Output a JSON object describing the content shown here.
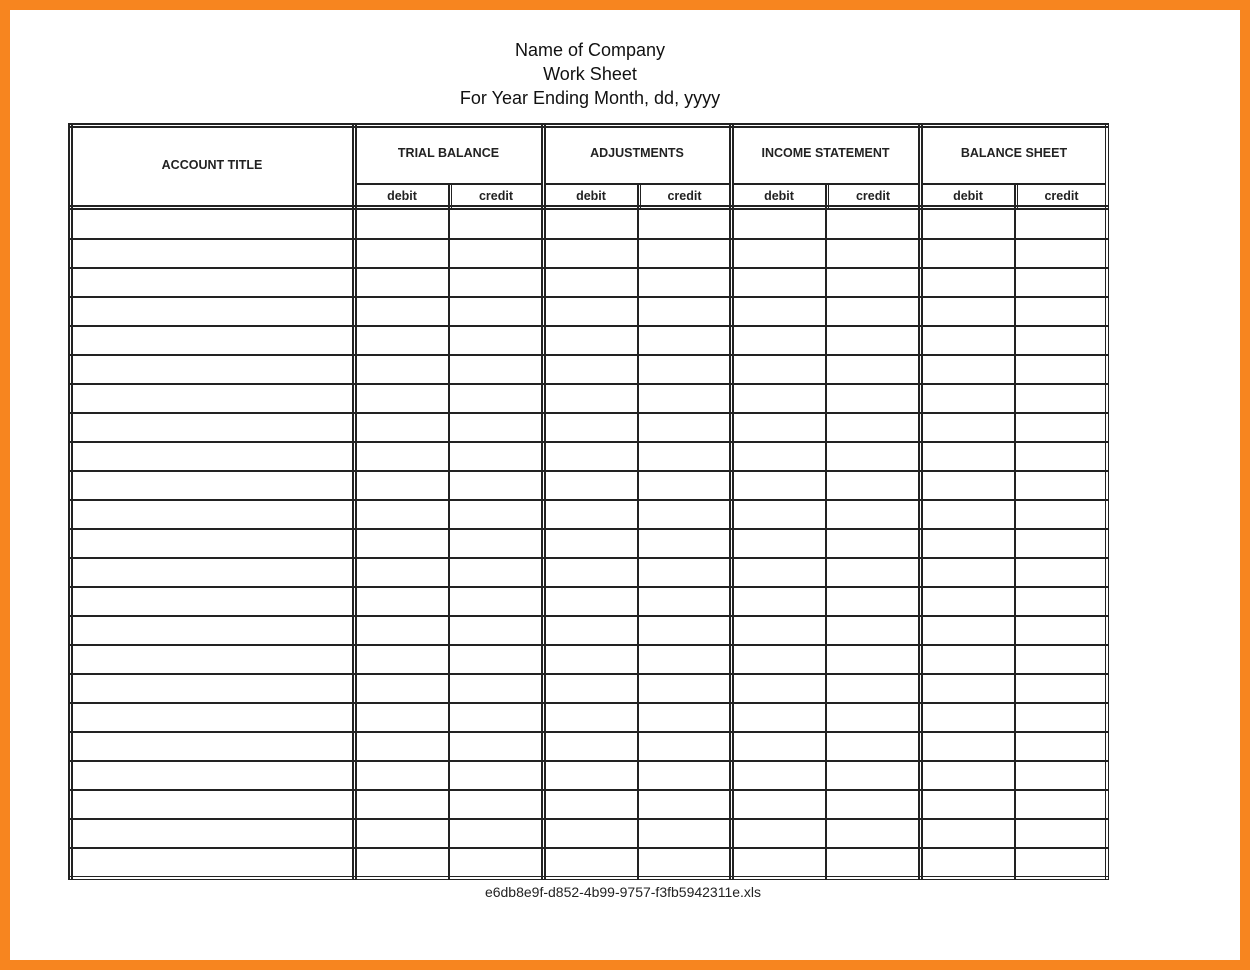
{
  "header": {
    "company": "Name of Company",
    "sheet": "Work Sheet",
    "period": "For Year Ending Month, dd, yyyy"
  },
  "table": {
    "account_title": "ACCOUNT TITLE",
    "groups": [
      {
        "label": "TRIAL BALANCE",
        "debit": "debit",
        "credit": "credit"
      },
      {
        "label": "ADJUSTMENTS",
        "debit": "debit",
        "credit": "credit"
      },
      {
        "label": "INCOME STATEMENT",
        "debit": "debit",
        "credit": "credit"
      },
      {
        "label": "BALANCE SHEET",
        "debit": "debit",
        "credit": "credit"
      }
    ],
    "empty_rows": 23
  },
  "footer": {
    "filename": "e6db8e9f-d852-4b99-9757-f3fb5942311e.xls"
  },
  "colors": {
    "frame": "#f7851f"
  }
}
